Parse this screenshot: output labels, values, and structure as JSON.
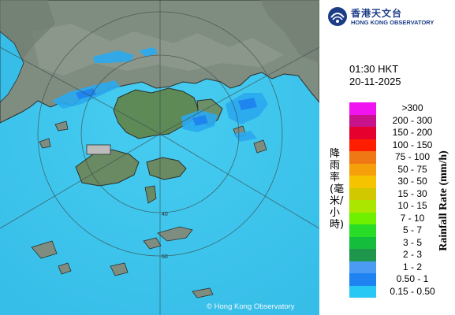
{
  "header": {
    "logo_icon": "hong-kong-observatory-logo",
    "org_name_cn": "香港天文台",
    "org_name_en": "HONG KONG OBSERVATORY"
  },
  "timestamp": {
    "time": "01:30 HKT",
    "date": "20-11-2025"
  },
  "map": {
    "copyright": "© Hong Kong Observatory",
    "range_ring_labels": [
      "40",
      "60"
    ],
    "sea_color": "#3ec7ee",
    "land_color": "#7f8d80"
  },
  "legend": {
    "title_cn": "降雨率(毫米/小時)",
    "title_en": "Rainfall Rate (mm/h)",
    "items": [
      {
        "label": ">300",
        "color": "#f014f0"
      },
      {
        "label": "200 - 300",
        "color": "#c8148c"
      },
      {
        "label": "150 - 200",
        "color": "#e6002d"
      },
      {
        "label": "100 - 150",
        "color": "#ff1e00"
      },
      {
        "label": "75 - 100",
        "color": "#f07814"
      },
      {
        "label": "50 - 75",
        "color": "#f5a00a"
      },
      {
        "label": "30 - 50",
        "color": "#f5c300"
      },
      {
        "label": "15 - 30",
        "color": "#d2c800"
      },
      {
        "label": "10 - 15",
        "color": "#aae600"
      },
      {
        "label": "7 - 10",
        "color": "#6ef000"
      },
      {
        "label": "5 - 7",
        "color": "#28dc28"
      },
      {
        "label": "3 - 5",
        "color": "#14be3c"
      },
      {
        "label": "2 - 3",
        "color": "#1e964b"
      },
      {
        "label": "1 - 2",
        "color": "#4b9bf5"
      },
      {
        "label": "0.50 - 1",
        "color": "#1e82f0"
      },
      {
        "label": "0.15 - 0.50",
        "color": "#28c8f5"
      }
    ]
  }
}
